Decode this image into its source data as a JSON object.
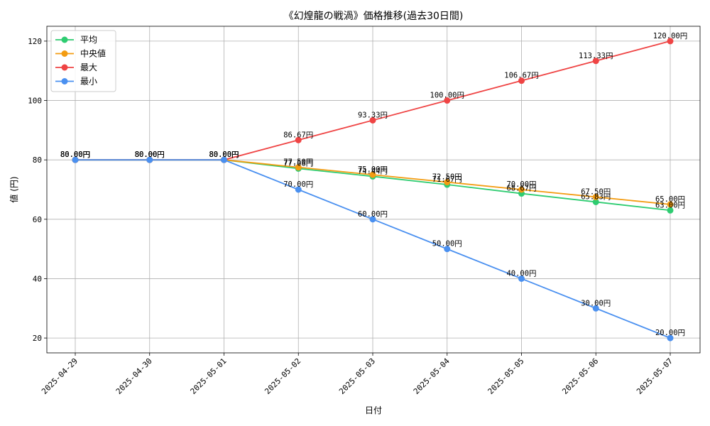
{
  "chart_data": {
    "type": "line",
    "title": "《幻煌龍の戦渦》価格推移(過去30日間)",
    "xlabel": "日付",
    "ylabel": "値 (円)",
    "categories": [
      "2025-04-29",
      "2025-04-30",
      "2025-05-01",
      "2025-05-02",
      "2025-05-03",
      "2025-05-04",
      "2025-05-05",
      "2025-05-06",
      "2025-05-07"
    ],
    "ylim": [
      15,
      125
    ],
    "yticks": [
      20,
      40,
      60,
      80,
      100,
      120
    ],
    "grid": true,
    "legend_position": "top-left",
    "value_suffix": "円",
    "series": [
      {
        "name": "平均",
        "color": "#2ecc71",
        "values": [
          80.0,
          80.0,
          80.0,
          77.08,
          74.44,
          71.67,
          68.67,
          65.83,
          63.0
        ]
      },
      {
        "name": "中央値",
        "color": "#f39c12",
        "values": [
          80.0,
          80.0,
          80.0,
          77.5,
          75.0,
          72.5,
          70.0,
          67.5,
          65.0
        ]
      },
      {
        "name": "最大",
        "color": "#ef4444",
        "values": [
          80.0,
          80.0,
          80.0,
          86.67,
          93.33,
          100.0,
          106.67,
          113.33,
          120.0
        ]
      },
      {
        "name": "最小",
        "color": "#4a90f0",
        "values": [
          80.0,
          80.0,
          80.0,
          70.0,
          60.0,
          50.0,
          40.0,
          30.0,
          20.0
        ]
      }
    ]
  }
}
